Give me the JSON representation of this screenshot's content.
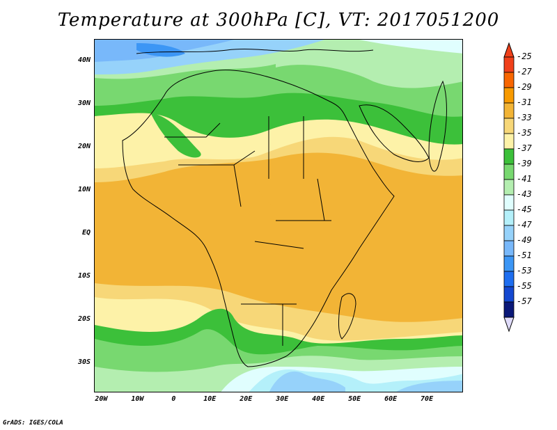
{
  "map_title": "Temperature at 300hPa [C], VT: 2017051200",
  "footer": "GrADS: IGES/COLA",
  "lat_labels": [
    "40N",
    "30N",
    "20N",
    "10N",
    "EQ",
    "10S",
    "20S",
    "30S"
  ],
  "lat_values": [
    40,
    30,
    20,
    10,
    0,
    -10,
    -20,
    -30
  ],
  "lon_labels": [
    "20W",
    "10W",
    "0",
    "10E",
    "20E",
    "30E",
    "40E",
    "50E",
    "60E",
    "70E"
  ],
  "lon_values": [
    -20,
    -10,
    0,
    10,
    20,
    30,
    40,
    50,
    60,
    70
  ],
  "map_extent": {
    "lon_min": -22,
    "lon_max": 80,
    "lat_min": -37,
    "lat_max": 45
  },
  "colorbar": {
    "labels": [
      "-25",
      "-27",
      "-29",
      "-31",
      "-33",
      "-35",
      "-37",
      "-39",
      "-41",
      "-43",
      "-45",
      "-47",
      "-49",
      "-51",
      "-53",
      "-55",
      "-57"
    ],
    "colors": [
      "#f0401a",
      "#f86600",
      "#f89a00",
      "#f2b436",
      "#f7d778",
      "#fdf2a8",
      "#3cc03a",
      "#78d870",
      "#b4eeb0",
      "#e0fefe",
      "#b4f0fa",
      "#96d2fa",
      "#78b8fa",
      "#3c96f5",
      "#1e6ef0",
      "#1448d0",
      "#0a1878"
    ],
    "max_color": "#f0401a",
    "min_color": "#e0dcfa"
  }
}
